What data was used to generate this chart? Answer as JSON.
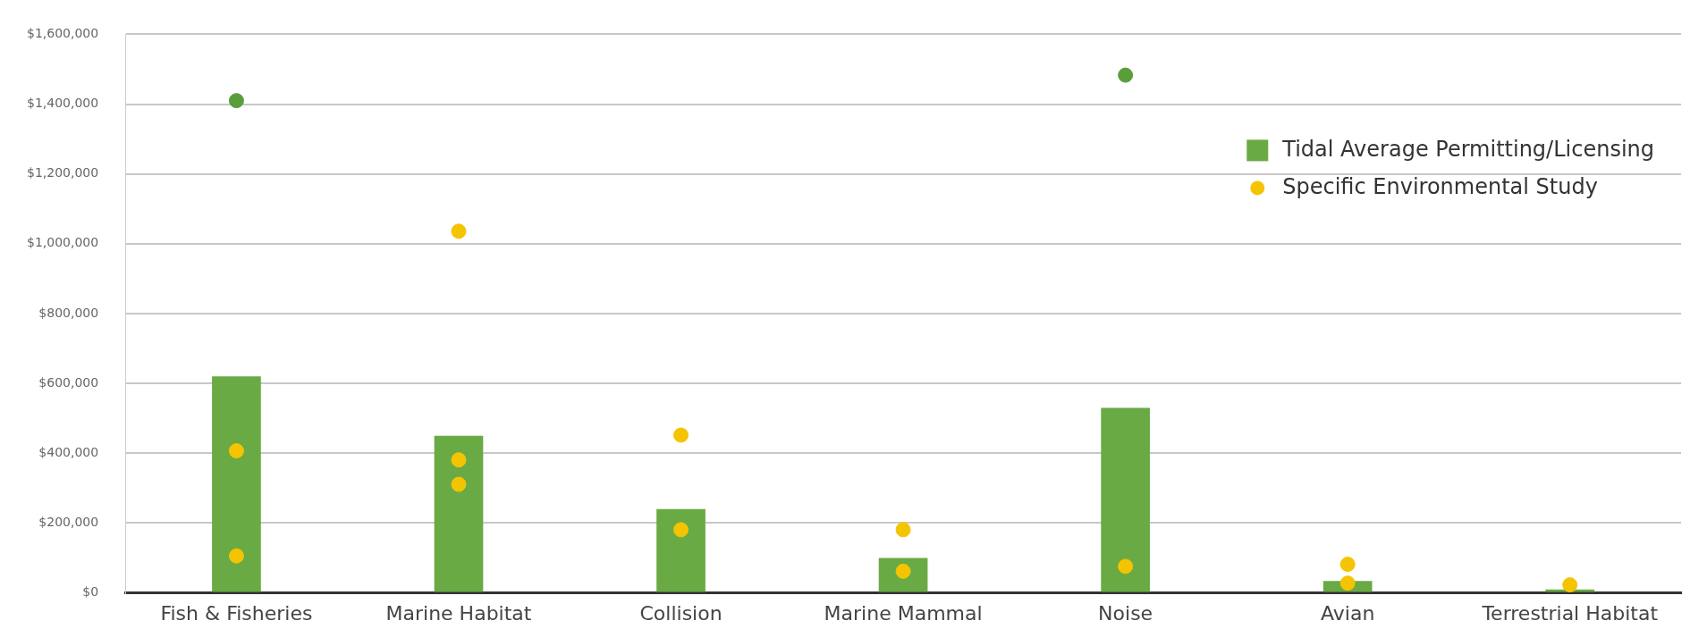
{
  "chart_data": {
    "type": "bar",
    "categories": [
      "Fish & Fisheries",
      "Marine Habitat",
      "Collision",
      "Marine Mammal",
      "Noise",
      "Avian",
      "Terrestrial Habitat"
    ],
    "series": [
      {
        "name": "Tidal Average Permitting/Licensing",
        "color": "#6aaa44",
        "values": [
          620000,
          450000,
          240000,
          100000,
          530000,
          34000,
          10000
        ]
      },
      {
        "name": "Specific Environmental Study",
        "type": "scatter",
        "color": "#f5c400",
        "x": [
          "Fish & Fisheries",
          "Fish & Fisheries",
          "Marine Habitat",
          "Marine Habitat",
          "Marine Habitat",
          "Collision",
          "Collision",
          "Marine Mammal",
          "Marine Mammal",
          "Noise",
          "Avian",
          "Avian",
          "Terrestrial Habitat"
        ],
        "values": [
          407000,
          106000,
          1036000,
          381000,
          311000,
          452000,
          181000,
          181000,
          62000,
          76000,
          82000,
          28000,
          23000
        ]
      },
      {
        "type": "scatter",
        "color": "#5a9e3a",
        "x": [
          "Fish & Fisheries",
          "Noise"
        ],
        "values": [
          1410000,
          1483000
        ]
      }
    ],
    "ylim": [
      0,
      1600000
    ],
    "yticks": [
      {
        "value": 0,
        "label": "$0"
      },
      {
        "value": 200000,
        "label": "$200,000"
      },
      {
        "value": 400000,
        "label": "$400,000"
      },
      {
        "value": 600000,
        "label": "$600,000"
      },
      {
        "value": 800000,
        "label": "$800,000"
      },
      {
        "value": 1000000,
        "label": "$1,000,000"
      },
      {
        "value": 1200000,
        "label": "$1,200,000"
      },
      {
        "value": 1400000,
        "label": "$1,400,000"
      },
      {
        "value": 1600000,
        "label": "$1,600,000"
      }
    ],
    "grid": "y",
    "legend": "top right",
    "marker": "circle"
  }
}
